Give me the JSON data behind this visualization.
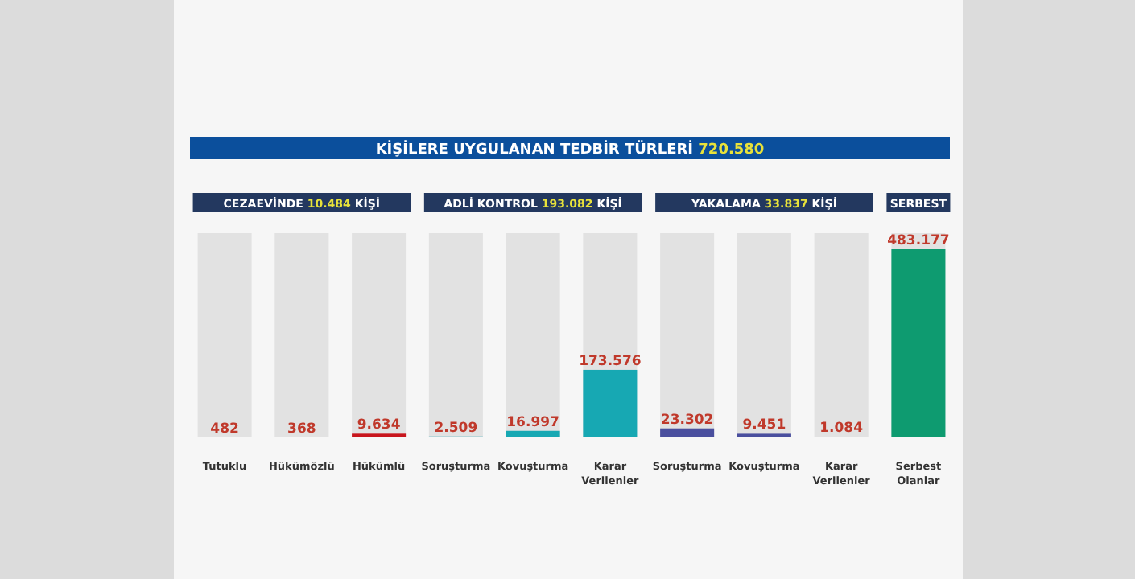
{
  "chart_data": {
    "type": "bar",
    "title": "KİŞİLERE UYGULANAN TEDBİR TÜRLERİ 720.580",
    "annotations": [
      "CEZAEVİNDE 10.484 KİŞİ",
      "ADLİ KONTROL 193.082 KİŞİ",
      "YAKALAMA 33.837 KİŞİ",
      "SERBEST"
    ],
    "categories": [
      "Tutuklu",
      "Hükümözlü",
      "Hükümlü",
      "Soruşturma",
      "Kovuşturma",
      "Karar Verilenler",
      "Soruşturma",
      "Kovuşturma",
      "Karar Verilenler",
      "Serbest Olanlar"
    ],
    "values": [
      482,
      368,
      9634,
      2509,
      16997,
      173576,
      23302,
      9451,
      1084,
      483177
    ],
    "value_labels": [
      "482",
      "368",
      "9.634",
      "2.509",
      "16.997",
      "173.576",
      "23.302",
      "9.451",
      "1.084",
      "483.177"
    ],
    "colors": [
      "#c8161d",
      "#c8161d",
      "#c8161d",
      "#17a8b3",
      "#17a8b3",
      "#17a8b3",
      "#4a4f9e",
      "#4a4f9e",
      "#4a4f9e",
      "#0e9b70"
    ]
  }
}
